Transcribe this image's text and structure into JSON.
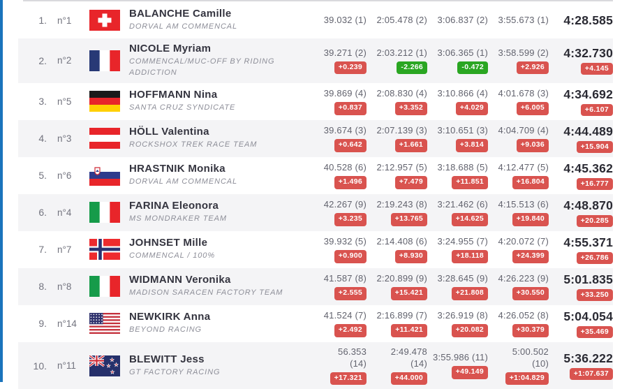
{
  "theme": {
    "accent_blue": "#1b74bc",
    "row_alt_bg": "#f4f4f6",
    "badge_red": "#d9534f",
    "badge_green": "#2aa622"
  },
  "table": {
    "rows": [
      {
        "rank": "1.",
        "bib": "n°1",
        "flag": "ch",
        "flag_country": "switzerland",
        "name": "BALANCHE Camille",
        "team": "DORVAL AM COMMENCAL",
        "splits": [
          {
            "time": "39.032",
            "pos": "(1)"
          },
          {
            "time": "2:05.478",
            "pos": "(2)"
          },
          {
            "time": "3:06.837",
            "pos": "(2)"
          },
          {
            "time": "3:55.673",
            "pos": "(1)"
          }
        ],
        "final": {
          "time": "4:28.585"
        }
      },
      {
        "rank": "2.",
        "bib": "n°2",
        "flag": "fr",
        "flag_country": "france",
        "name": "NICOLE Myriam",
        "team": "COMMENCAL/MUC-OFF BY RIDING ADDICTION",
        "splits": [
          {
            "time": "39.271",
            "pos": "(2)",
            "delta": "+0.239",
            "delta_color": "red"
          },
          {
            "time": "2:03.212",
            "pos": "(1)",
            "delta": "-2.266",
            "delta_color": "green"
          },
          {
            "time": "3:06.365",
            "pos": "(1)",
            "delta": "-0.472",
            "delta_color": "green"
          },
          {
            "time": "3:58.599",
            "pos": "(2)",
            "delta": "+2.926",
            "delta_color": "red"
          }
        ],
        "final": {
          "time": "4:32.730",
          "delta": "+4.145",
          "delta_color": "red"
        }
      },
      {
        "rank": "3.",
        "bib": "n°5",
        "flag": "de",
        "flag_country": "germany",
        "name": "HOFFMANN Nina",
        "team": "SANTA CRUZ SYNDICATE",
        "splits": [
          {
            "time": "39.869",
            "pos": "(4)",
            "delta": "+0.837",
            "delta_color": "red"
          },
          {
            "time": "2:08.830",
            "pos": "(4)",
            "delta": "+3.352",
            "delta_color": "red"
          },
          {
            "time": "3:10.866",
            "pos": "(4)",
            "delta": "+4.029",
            "delta_color": "red"
          },
          {
            "time": "4:01.678",
            "pos": "(3)",
            "delta": "+6.005",
            "delta_color": "red"
          }
        ],
        "final": {
          "time": "4:34.692",
          "delta": "+6.107",
          "delta_color": "red"
        }
      },
      {
        "rank": "4.",
        "bib": "n°3",
        "flag": "at",
        "flag_country": "austria",
        "name": "HÖLL Valentina",
        "team": "ROCKSHOX TREK RACE TEAM",
        "splits": [
          {
            "time": "39.674",
            "pos": "(3)",
            "delta": "+0.642",
            "delta_color": "red"
          },
          {
            "time": "2:07.139",
            "pos": "(3)",
            "delta": "+1.661",
            "delta_color": "red"
          },
          {
            "time": "3:10.651",
            "pos": "(3)",
            "delta": "+3.814",
            "delta_color": "red"
          },
          {
            "time": "4:04.709",
            "pos": "(4)",
            "delta": "+9.036",
            "delta_color": "red"
          }
        ],
        "final": {
          "time": "4:44.489",
          "delta": "+15.904",
          "delta_color": "red"
        }
      },
      {
        "rank": "5.",
        "bib": "n°6",
        "flag": "si",
        "flag_country": "slovenia",
        "name": "HRASTNIK Monika",
        "team": "DORVAL AM COMMENCAL",
        "splits": [
          {
            "time": "40.528",
            "pos": "(6)",
            "delta": "+1.496",
            "delta_color": "red"
          },
          {
            "time": "2:12.957",
            "pos": "(5)",
            "delta": "+7.479",
            "delta_color": "red"
          },
          {
            "time": "3:18.688",
            "pos": "(5)",
            "delta": "+11.851",
            "delta_color": "red"
          },
          {
            "time": "4:12.477",
            "pos": "(5)",
            "delta": "+16.804",
            "delta_color": "red"
          }
        ],
        "final": {
          "time": "4:45.362",
          "delta": "+16.777",
          "delta_color": "red"
        }
      },
      {
        "rank": "6.",
        "bib": "n°4",
        "flag": "it",
        "flag_country": "italy",
        "name": "FARINA Eleonora",
        "team": "MS MONDRAKER TEAM",
        "splits": [
          {
            "time": "42.267",
            "pos": "(9)",
            "delta": "+3.235",
            "delta_color": "red"
          },
          {
            "time": "2:19.243",
            "pos": "(8)",
            "delta": "+13.765",
            "delta_color": "red"
          },
          {
            "time": "3:21.462",
            "pos": "(6)",
            "delta": "+14.625",
            "delta_color": "red"
          },
          {
            "time": "4:15.513",
            "pos": "(6)",
            "delta": "+19.840",
            "delta_color": "red"
          }
        ],
        "final": {
          "time": "4:48.870",
          "delta": "+20.285",
          "delta_color": "red"
        }
      },
      {
        "rank": "7.",
        "bib": "n°7",
        "flag": "no",
        "flag_country": "norway",
        "name": "JOHNSET Mille",
        "team": "COMMENCAL / 100%",
        "splits": [
          {
            "time": "39.932",
            "pos": "(5)",
            "delta": "+0.900",
            "delta_color": "red"
          },
          {
            "time": "2:14.408",
            "pos": "(6)",
            "delta": "+8.930",
            "delta_color": "red"
          },
          {
            "time": "3:24.955",
            "pos": "(7)",
            "delta": "+18.118",
            "delta_color": "red"
          },
          {
            "time": "4:20.072",
            "pos": "(7)",
            "delta": "+24.399",
            "delta_color": "red"
          }
        ],
        "final": {
          "time": "4:55.371",
          "delta": "+26.786",
          "delta_color": "red"
        }
      },
      {
        "rank": "8.",
        "bib": "n°8",
        "flag": "it",
        "flag_country": "italy",
        "name": "WIDMANN Veronika",
        "team": "MADISON SARACEN FACTORY TEAM",
        "splits": [
          {
            "time": "41.587",
            "pos": "(8)",
            "delta": "+2.555",
            "delta_color": "red"
          },
          {
            "time": "2:20.899",
            "pos": "(9)",
            "delta": "+15.421",
            "delta_color": "red"
          },
          {
            "time": "3:28.645",
            "pos": "(9)",
            "delta": "+21.808",
            "delta_color": "red"
          },
          {
            "time": "4:26.223",
            "pos": "(9)",
            "delta": "+30.550",
            "delta_color": "red"
          }
        ],
        "final": {
          "time": "5:01.835",
          "delta": "+33.250",
          "delta_color": "red"
        }
      },
      {
        "rank": "9.",
        "bib": "n°14",
        "flag": "us",
        "flag_country": "usa",
        "name": "NEWKIRK Anna",
        "team": "BEYOND RACING",
        "splits": [
          {
            "time": "41.524",
            "pos": "(7)",
            "delta": "+2.492",
            "delta_color": "red"
          },
          {
            "time": "2:16.899",
            "pos": "(7)",
            "delta": "+11.421",
            "delta_color": "red"
          },
          {
            "time": "3:26.919",
            "pos": "(8)",
            "delta": "+20.082",
            "delta_color": "red"
          },
          {
            "time": "4:26.052",
            "pos": "(8)",
            "delta": "+30.379",
            "delta_color": "red"
          }
        ],
        "final": {
          "time": "5:04.054",
          "delta": "+35.469",
          "delta_color": "red"
        }
      },
      {
        "rank": "10.",
        "bib": "n°11",
        "flag": "nz",
        "flag_country": "new-zealand",
        "name": "BLEWITT Jess",
        "team": "GT FACTORY RACING",
        "splits": [
          {
            "time": "56.353",
            "pos": "(14)",
            "delta": "+17.321",
            "delta_color": "red",
            "wrap": true
          },
          {
            "time": "2:49.478",
            "pos": "(14)",
            "delta": "+44.000",
            "delta_color": "red",
            "wrap": true
          },
          {
            "time": "3:55.986",
            "pos": "(11)",
            "delta": "+49.149",
            "delta_color": "red"
          },
          {
            "time": "5:00.502",
            "pos": "(10)",
            "delta": "+1:04.829",
            "delta_color": "red",
            "wrap": true
          }
        ],
        "final": {
          "time": "5:36.222",
          "delta": "+1:07.637",
          "delta_color": "red"
        }
      }
    ]
  }
}
